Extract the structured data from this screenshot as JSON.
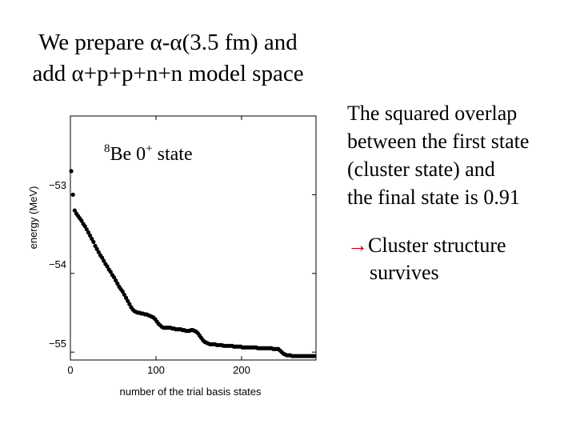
{
  "title": {
    "line1": "We prepare α-α(3.5 fm) and",
    "line2": "add α+p+p+n+n model space"
  },
  "note": {
    "line1": "The squared overlap",
    "line2": "between the first state",
    "line3": "(cluster state) and",
    "line4": "the final state is 0.91"
  },
  "conclusion": {
    "arrow": "→",
    "line1": "Cluster structure",
    "line2": "survives",
    "arrow_color": "#c00000"
  },
  "chart_data": {
    "type": "scatter",
    "xlabel": "number of the trial basis states",
    "ylabel": "energy (MeV)",
    "xlim": [
      0,
      287
    ],
    "ylim": [
      -55.1,
      -52.0
    ],
    "xticks": [
      "0",
      "100",
      "200"
    ],
    "yticks": [
      "−53",
      "−54",
      "−55"
    ],
    "annotation": {
      "sup_mass": "8",
      "element": "Be",
      "state": " 0",
      "sup_parity": "+",
      "suffix": " state"
    },
    "series": [
      {
        "marker_color": "#000000",
        "x": [
          1,
          3,
          5,
          7,
          9,
          11,
          13,
          15,
          17,
          19,
          21,
          23,
          25,
          27,
          29,
          31,
          33,
          35,
          37,
          39,
          41,
          43,
          45,
          47,
          49,
          51,
          53,
          55,
          57,
          59,
          61,
          63,
          65,
          67,
          69,
          71,
          73,
          75,
          77,
          79,
          81,
          83,
          85,
          87,
          89,
          91,
          93,
          95,
          97,
          99,
          101,
          103,
          105,
          107,
          109,
          111,
          113,
          115,
          117,
          119,
          121,
          123,
          125,
          127,
          129,
          131,
          133,
          135,
          137,
          139,
          141,
          143,
          145,
          147,
          149,
          151,
          153,
          155,
          157,
          159,
          161,
          163,
          165,
          167,
          169,
          171,
          173,
          175,
          177,
          179,
          181,
          183,
          185,
          187,
          189,
          191,
          193,
          195,
          197,
          199,
          201,
          203,
          205,
          207,
          209,
          211,
          213,
          215,
          217,
          219,
          221,
          223,
          225,
          227,
          229,
          231,
          233,
          235,
          237,
          239,
          241,
          243,
          245,
          247,
          249,
          251,
          253,
          255,
          257,
          259,
          261,
          263,
          265,
          267,
          269,
          271,
          273,
          275,
          277,
          279,
          281,
          283,
          285
        ],
        "y": [
          -52.7,
          -53.0,
          -53.2,
          -53.24,
          -53.27,
          -53.3,
          -53.33,
          -53.37,
          -53.4,
          -53.44,
          -53.48,
          -53.52,
          -53.56,
          -53.6,
          -53.65,
          -53.69,
          -53.73,
          -53.77,
          -53.8,
          -53.84,
          -53.88,
          -53.91,
          -53.95,
          -53.98,
          -54.02,
          -54.05,
          -54.09,
          -54.13,
          -54.17,
          -54.2,
          -54.23,
          -54.27,
          -54.31,
          -54.35,
          -54.39,
          -54.43,
          -54.46,
          -54.48,
          -54.49,
          -54.5,
          -54.5,
          -54.51,
          -54.51,
          -54.52,
          -54.52,
          -54.53,
          -54.54,
          -54.55,
          -54.56,
          -54.58,
          -54.61,
          -54.64,
          -54.66,
          -54.68,
          -54.69,
          -54.69,
          -54.69,
          -54.69,
          -54.69,
          -54.7,
          -54.7,
          -54.71,
          -54.71,
          -54.71,
          -54.71,
          -54.72,
          -54.72,
          -54.73,
          -54.73,
          -54.73,
          -54.72,
          -54.72,
          -54.73,
          -54.74,
          -54.76,
          -54.79,
          -54.82,
          -54.85,
          -54.87,
          -54.88,
          -54.89,
          -54.9,
          -54.9,
          -54.9,
          -54.9,
          -54.91,
          -54.91,
          -54.91,
          -54.91,
          -54.92,
          -54.92,
          -54.92,
          -54.92,
          -54.92,
          -54.92,
          -54.93,
          -54.93,
          -54.93,
          -54.93,
          -54.93,
          -54.94,
          -54.94,
          -54.94,
          -54.94,
          -54.94,
          -54.94,
          -54.94,
          -54.94,
          -54.94,
          -54.95,
          -54.95,
          -54.95,
          -54.95,
          -54.95,
          -54.95,
          -54.95,
          -54.95,
          -54.95,
          -54.96,
          -54.96,
          -54.96,
          -54.96,
          -54.98,
          -55.0,
          -55.02,
          -55.03,
          -55.04,
          -55.04,
          -55.04,
          -55.05,
          -55.05,
          -55.05,
          -55.05,
          -55.05,
          -55.05,
          -55.05,
          -55.05,
          -55.05,
          -55.05,
          -55.05,
          -55.05,
          -55.05,
          -55.05
        ]
      }
    ]
  }
}
